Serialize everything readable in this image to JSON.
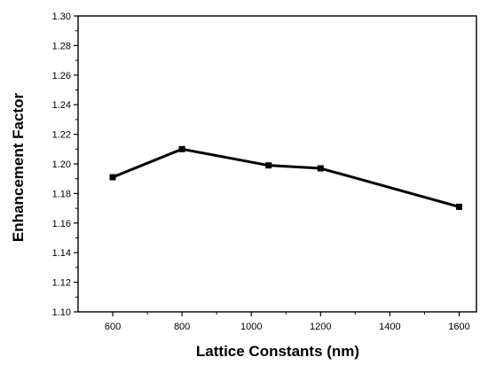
{
  "chart_data": {
    "type": "line",
    "xlabel": "Lattice Constants (nm)",
    "ylabel": "Enhancement Factor",
    "xlim": [
      500,
      1650
    ],
    "ylim": [
      1.1,
      1.3
    ],
    "xticks": [
      600,
      800,
      1000,
      1200,
      1400,
      1600
    ],
    "yticks": [
      1.1,
      1.12,
      1.14,
      1.16,
      1.18,
      1.2,
      1.22,
      1.24,
      1.26,
      1.28,
      1.3
    ],
    "x_tick_labels": [
      "600",
      "800",
      "1000",
      "1200",
      "1400",
      "1600"
    ],
    "y_tick_labels": [
      "1.10",
      "1.12",
      "1.14",
      "1.16",
      "1.18",
      "1.20",
      "1.22",
      "1.24",
      "1.26",
      "1.28",
      "1.30"
    ],
    "grid": false,
    "series": [
      {
        "x": [
          600,
          800,
          1050,
          1200,
          1600
        ],
        "values": [
          1.191,
          1.21,
          1.199,
          1.197,
          1.171
        ],
        "color": "#000000",
        "marker": "square"
      }
    ]
  }
}
